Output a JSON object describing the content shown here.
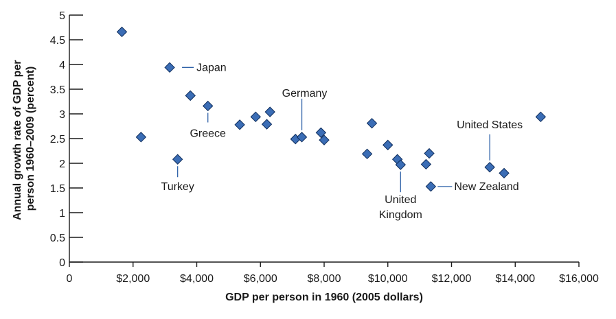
{
  "chart_data": {
    "type": "scatter",
    "xlabel": "GDP per person in 1960 (2005 dollars)",
    "ylabel_lines": [
      "Annual growth rate of GDP per",
      "person 1960–2009 (percent)"
    ],
    "xlim": [
      0,
      16000
    ],
    "ylim": [
      0,
      5
    ],
    "xticks": [
      {
        "value": 0,
        "label": "0"
      },
      {
        "value": 2000,
        "label": "$2,000"
      },
      {
        "value": 4000,
        "label": "$4,000"
      },
      {
        "value": 6000,
        "label": "$6,000"
      },
      {
        "value": 8000,
        "label": "$8,000"
      },
      {
        "value": 10000,
        "label": "$10,000"
      },
      {
        "value": 12000,
        "label": "$12,000"
      },
      {
        "value": 14000,
        "label": "$14,000"
      },
      {
        "value": 16000,
        "label": "$16,000"
      }
    ],
    "yticks": [
      {
        "value": 0,
        "label": "0"
      },
      {
        "value": 0.5,
        "label": "0.5"
      },
      {
        "value": 1,
        "label": "1"
      },
      {
        "value": 1.5,
        "label": "1.5"
      },
      {
        "value": 2,
        "label": "2"
      },
      {
        "value": 2.5,
        "label": "2.5"
      },
      {
        "value": 3,
        "label": "3"
      },
      {
        "value": 3.5,
        "label": "3.5"
      },
      {
        "value": 4,
        "label": "4"
      },
      {
        "value": 4.5,
        "label": "4.5"
      },
      {
        "value": 5,
        "label": "5"
      }
    ],
    "grid": false,
    "marker": "diamond",
    "colors": {
      "point_fill": "#3b6db5",
      "point_stroke": "#0e2d5c",
      "leader": "#2f62a8"
    },
    "points": [
      {
        "x": 1650,
        "y": 4.66
      },
      {
        "x": 2250,
        "y": 2.53
      },
      {
        "x": 3150,
        "y": 3.94,
        "label": "Japan"
      },
      {
        "x": 3400,
        "y": 2.08,
        "label": "Turkey"
      },
      {
        "x": 3800,
        "y": 3.37
      },
      {
        "x": 4350,
        "y": 3.16,
        "label": "Greece"
      },
      {
        "x": 5350,
        "y": 2.78
      },
      {
        "x": 5850,
        "y": 2.94
      },
      {
        "x": 6200,
        "y": 2.79
      },
      {
        "x": 6300,
        "y": 3.04
      },
      {
        "x": 7100,
        "y": 2.49
      },
      {
        "x": 7300,
        "y": 2.53,
        "label": "Germany"
      },
      {
        "x": 7900,
        "y": 2.62
      },
      {
        "x": 8000,
        "y": 2.47
      },
      {
        "x": 9350,
        "y": 2.19
      },
      {
        "x": 9500,
        "y": 2.81
      },
      {
        "x": 10000,
        "y": 2.37
      },
      {
        "x": 10300,
        "y": 2.08
      },
      {
        "x": 10400,
        "y": 1.97,
        "label": "United Kingdom"
      },
      {
        "x": 11200,
        "y": 1.98
      },
      {
        "x": 11300,
        "y": 2.2
      },
      {
        "x": 11350,
        "y": 1.53,
        "label": "New Zealand"
      },
      {
        "x": 13200,
        "y": 1.92,
        "label": "United States"
      },
      {
        "x": 13650,
        "y": 1.8
      },
      {
        "x": 14800,
        "y": 2.94
      }
    ]
  }
}
